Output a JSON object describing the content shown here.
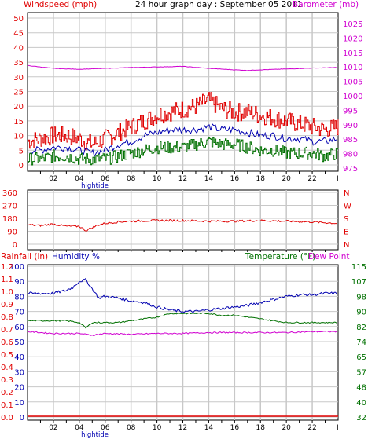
{
  "title": "24 hour graph day : September 05 2011",
  "colors": {
    "wind": "#e00000",
    "gust": "#e00000",
    "wind_avg": "#0000b0",
    "wind_low": "#007000",
    "barometer": "#d000d0",
    "direction": "#e00000",
    "humidity": "#0000b0",
    "temperature": "#007000",
    "dewpoint": "#d000d0",
    "rainfall": "#e00000",
    "grid": "#c8c8c8",
    "tick_label_red": "#e00000",
    "tick_label_pink": "#d000d0",
    "tick_label_blue": "#0000b0",
    "tick_label_green": "#007000",
    "hightide": "#0000b0"
  },
  "x_labels": [
    "02",
    "04",
    "06",
    "08",
    "10",
    "12",
    "14",
    "16",
    "18",
    "20",
    "22"
  ],
  "x_end_marker": "I",
  "hightide_label": "hightide",
  "chart_data": [
    {
      "type": "line",
      "name": "wind",
      "left_axis_label": "Windspeed (mph)",
      "right_axis_label": "Barometer (mb)",
      "left_ticks": [
        "0",
        "5",
        "10",
        "15",
        "20",
        "25",
        "30",
        "35",
        "40",
        "45",
        "50"
      ],
      "right_ticks": [
        "975",
        "980",
        "985",
        "990",
        "995",
        "1000",
        "1005",
        "1010",
        "1015",
        "1020",
        "1025"
      ],
      "ylim_left": [
        0,
        50
      ],
      "ylim_right": [
        972.5,
        1027.5
      ],
      "x_range_hours": [
        0,
        24
      ],
      "series": [
        {
          "key": "gust",
          "axis": "left",
          "hours": [
            0,
            1,
            2,
            3,
            4,
            5,
            6,
            7,
            8,
            9,
            10,
            11,
            12,
            13,
            14,
            15,
            16,
            17,
            18,
            19,
            20,
            21,
            22,
            23,
            24
          ],
          "values": [
            8,
            9,
            10,
            10,
            9,
            7,
            9,
            11,
            13,
            15,
            17,
            18,
            19,
            20,
            22,
            19,
            18,
            18,
            17,
            16,
            15,
            14,
            13,
            12,
            13
          ]
        },
        {
          "key": "wind_avg",
          "axis": "left",
          "hours": [
            0,
            1,
            2,
            3,
            4,
            5,
            6,
            7,
            8,
            9,
            10,
            11,
            12,
            13,
            14,
            15,
            16,
            17,
            18,
            19,
            20,
            21,
            22,
            23,
            24
          ],
          "values": [
            5,
            5,
            6,
            6,
            5,
            4,
            5,
            7,
            8,
            10,
            11,
            12,
            12,
            12,
            13,
            12,
            12,
            11,
            10,
            10,
            9,
            9,
            8,
            8,
            9
          ]
        },
        {
          "key": "wind_low",
          "axis": "left",
          "hours": [
            0,
            1,
            2,
            3,
            4,
            5,
            6,
            7,
            8,
            9,
            10,
            11,
            12,
            13,
            14,
            15,
            16,
            17,
            18,
            19,
            20,
            21,
            22,
            23,
            24
          ],
          "values": [
            2,
            2,
            3,
            3,
            2,
            2,
            2,
            3,
            4,
            5,
            6,
            6,
            6,
            7,
            8,
            7,
            7,
            6,
            5,
            5,
            4,
            4,
            4,
            3,
            4
          ]
        },
        {
          "key": "barometer",
          "axis": "right",
          "hours": [
            0,
            2,
            4,
            6,
            8,
            10,
            12,
            14,
            16,
            17,
            18,
            20,
            22,
            24
          ],
          "values": [
            1010.5,
            1009.5,
            1009.2,
            1009.5,
            1009.8,
            1010,
            1010.2,
            1009.5,
            1009.0,
            1008.8,
            1009.0,
            1009.3,
            1009.6,
            1009.8
          ]
        }
      ]
    },
    {
      "type": "line",
      "name": "direction",
      "left_ticks": [
        "0",
        "90",
        "180",
        "270",
        "360"
      ],
      "right_ticks": [
        "N",
        "E",
        "S",
        "W",
        "N"
      ],
      "ylim": [
        0,
        360
      ],
      "x_range_hours": [
        0,
        24
      ],
      "series": [
        {
          "key": "direction",
          "hours": [
            0,
            1,
            2,
            3,
            4,
            4.5,
            5,
            5.5,
            6,
            7,
            8,
            10,
            12,
            14,
            16,
            18,
            20,
            22,
            24
          ],
          "values": [
            135,
            130,
            140,
            125,
            125,
            95,
            115,
            135,
            145,
            155,
            160,
            165,
            165,
            160,
            160,
            165,
            160,
            155,
            145
          ]
        }
      ]
    },
    {
      "type": "line",
      "name": "climate",
      "left_axis_label_1": "Rainfall (in)",
      "left_axis_label_2": "Humidity %",
      "right_axis_label_1": "Temperature (°F)",
      "right_axis_label_2": "Dew Point",
      "rain_ticks": [
        "0.0",
        "0.1",
        "0.2",
        "0.3",
        "0.4",
        "0.5",
        "0.6",
        "0.7",
        "0.8",
        "0.9",
        "1.0",
        "1.1",
        "1.2"
      ],
      "humidity_ticks": [
        "0",
        "10",
        "20",
        "30",
        "40",
        "50",
        "60",
        "70",
        "80",
        "90",
        "100"
      ],
      "temp_ticks": [
        "32",
        "40",
        "48",
        "57",
        "65",
        "74",
        "82",
        "90",
        "98",
        "107",
        "115"
      ],
      "ylim_humidity": [
        0,
        100
      ],
      "ylim_temp": [
        32,
        115
      ],
      "x_range_hours": [
        0,
        24
      ],
      "series": [
        {
          "key": "humidity",
          "axis": "humidity",
          "hours": [
            0,
            1,
            2,
            3,
            3.5,
            4,
            4.5,
            5,
            5.5,
            6,
            7,
            8,
            9,
            10,
            11,
            12,
            13,
            14,
            15,
            16,
            17,
            18,
            19,
            20,
            21,
            22,
            23,
            24
          ],
          "values": [
            82,
            82,
            82,
            84,
            86,
            90,
            91,
            85,
            79,
            80,
            79,
            77,
            76,
            73,
            71,
            70,
            70,
            71,
            72,
            73,
            74,
            76,
            78,
            80,
            81,
            81,
            82,
            82
          ]
        },
        {
          "key": "temperature",
          "axis": "temp",
          "hours": [
            0,
            1,
            2,
            3,
            4,
            4.5,
            5,
            5.5,
            6,
            7,
            8,
            9,
            10,
            11,
            12,
            13,
            14,
            15,
            16,
            17,
            18,
            19,
            20,
            21,
            22,
            23,
            24
          ],
          "values": [
            85,
            85,
            85,
            85,
            84,
            81,
            84,
            84,
            84,
            84,
            85,
            86,
            87,
            89,
            89,
            89,
            89,
            88,
            88,
            87,
            86,
            85,
            84,
            84,
            84,
            84,
            84
          ]
        },
        {
          "key": "dewpoint",
          "axis": "temp",
          "hours": [
            0,
            2,
            4,
            5,
            6,
            8,
            10,
            12,
            14,
            16,
            18,
            20,
            22,
            24
          ],
          "values": [
            79,
            78,
            78,
            77,
            78,
            77.5,
            78,
            78,
            78.5,
            78.5,
            78.5,
            78.5,
            79,
            79
          ]
        },
        {
          "key": "rainfall",
          "axis": "rain",
          "hours": [
            0,
            24
          ],
          "values": [
            0.0,
            0.0
          ]
        }
      ]
    }
  ]
}
